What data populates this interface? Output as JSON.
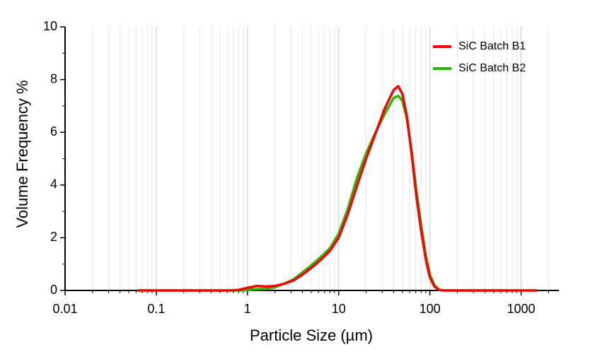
{
  "chart_data": {
    "type": "line",
    "xlabel": "Particle Size (µm)",
    "ylabel": "Volume Frequency %",
    "x": [
      0.063,
      0.08,
      0.1,
      0.13,
      0.16,
      0.2,
      0.25,
      0.32,
      0.4,
      0.5,
      0.63,
      0.8,
      1,
      1.26,
      1.6,
      2,
      2.5,
      3.2,
      4,
      5,
      6.3,
      8,
      10,
      12.6,
      16,
      20,
      25,
      32,
      40,
      45,
      50,
      56,
      63,
      71,
      80,
      90,
      100,
      112,
      126,
      141,
      160,
      200,
      250,
      316,
      400,
      500,
      630,
      800,
      1000,
      1260,
      1500
    ],
    "series": [
      {
        "name": "SiC Batch B1",
        "color": "#ff0000",
        "values": [
          0,
          0,
          0,
          0,
          0,
          0,
          0,
          0,
          0,
          0,
          0,
          0.02,
          0.1,
          0.17,
          0.15,
          0.17,
          0.25,
          0.38,
          0.6,
          0.85,
          1.15,
          1.5,
          2.0,
          2.9,
          4.0,
          5.0,
          5.9,
          6.9,
          7.6,
          7.75,
          7.45,
          6.6,
          5.2,
          3.6,
          2.3,
          1.2,
          0.5,
          0.15,
          0.02,
          0,
          0,
          0,
          0,
          0,
          0,
          0,
          0,
          0,
          0,
          0,
          0
        ]
      },
      {
        "name": "SiC Batch B2",
        "color": "#22bb00",
        "values": [
          0,
          0,
          0,
          0,
          0,
          0,
          0,
          0,
          0,
          0,
          0,
          0,
          0.02,
          0.05,
          0.06,
          0.12,
          0.25,
          0.42,
          0.68,
          0.95,
          1.25,
          1.6,
          2.15,
          3.1,
          4.3,
          5.2,
          5.95,
          6.7,
          7.3,
          7.38,
          7.2,
          6.5,
          5.3,
          3.8,
          2.5,
          1.35,
          0.6,
          0.2,
          0.03,
          0,
          0,
          0,
          0,
          0,
          0,
          0,
          0,
          0,
          0,
          0,
          0
        ]
      }
    ],
    "xlim": [
      0.01,
      2600
    ],
    "xticks": [
      0.01,
      0.1,
      1,
      10,
      100,
      1000
    ],
    "xscale": "log",
    "ylim": [
      0,
      10
    ],
    "yticks": [
      0,
      2,
      4,
      6,
      8,
      10
    ],
    "grid": "x",
    "legend": "upper right"
  }
}
